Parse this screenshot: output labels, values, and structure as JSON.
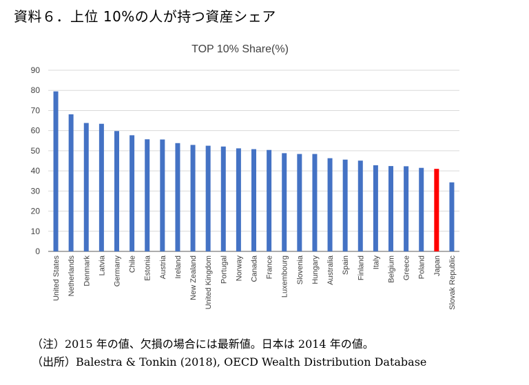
{
  "page_title": "資料６．上位 10%の人が持つ資産シェア",
  "notes": {
    "note1": "（注）2015 年の値、欠損の場合には最新値。日本は 2014 年の値。",
    "note2": "（出所）Balestra & Tonkin (2018), OECD Wealth Distribution Database"
  },
  "chart_data": {
    "type": "bar",
    "title": "TOP 10% Share(%)",
    "xlabel": "",
    "ylabel": "",
    "ylim": [
      0,
      90
    ],
    "yticks": [
      0,
      10,
      20,
      30,
      40,
      50,
      60,
      70,
      80,
      90
    ],
    "grid": true,
    "legend": "none",
    "categories": [
      "United States",
      "Netherlands",
      "Denmark",
      "Latvia",
      "Germany",
      "Chile",
      "Estonia",
      "Austria",
      "Ireland",
      "New Zealand",
      "United Kingdom",
      "Portugal",
      "Norway",
      "Canada",
      "France",
      "Luxembourg",
      "Slovenia",
      "Hungary",
      "Australia",
      "Spain",
      "Finland",
      "Italy",
      "Belgium",
      "Greece",
      "Poland",
      "Japan",
      "Slovak Republic"
    ],
    "values": [
      79.5,
      68.1,
      63.8,
      63.4,
      59.8,
      57.7,
      55.7,
      55.6,
      53.8,
      52.9,
      52.5,
      52.1,
      51.2,
      50.8,
      50.4,
      48.8,
      48.4,
      48.4,
      46.3,
      45.6,
      45.1,
      42.8,
      42.4,
      42.3,
      41.5,
      41.0,
      34.3
    ],
    "colors": {
      "default": "#4472c4",
      "highlight": "#ff0000",
      "grid": "#d9d9d9",
      "axis": "#595959"
    },
    "highlight_category": "Japan"
  }
}
